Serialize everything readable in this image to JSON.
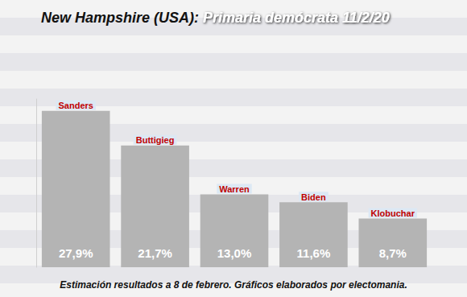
{
  "chart_data": {
    "type": "bar",
    "title": "New Hampshire (USA): Primaria demócrata 11/2/20",
    "annotations": [
      "Estimación resultados a 8 de febrero. Gráficos elaborados por electomania."
    ],
    "categories": [
      "Sanders",
      "Buttigieg",
      "Warren",
      "Biden",
      "Klobuchar"
    ],
    "values": [
      27.9,
      21.7,
      13.0,
      11.6,
      8.7
    ],
    "value_labels": [
      "27,9%",
      "21,7%",
      "13,0%",
      "11,6%",
      "8,7%"
    ],
    "color": "#b4b4b4",
    "ylim": [
      0,
      30
    ],
    "data_labels": true,
    "tick_labels": false,
    "grid": false
  }
}
